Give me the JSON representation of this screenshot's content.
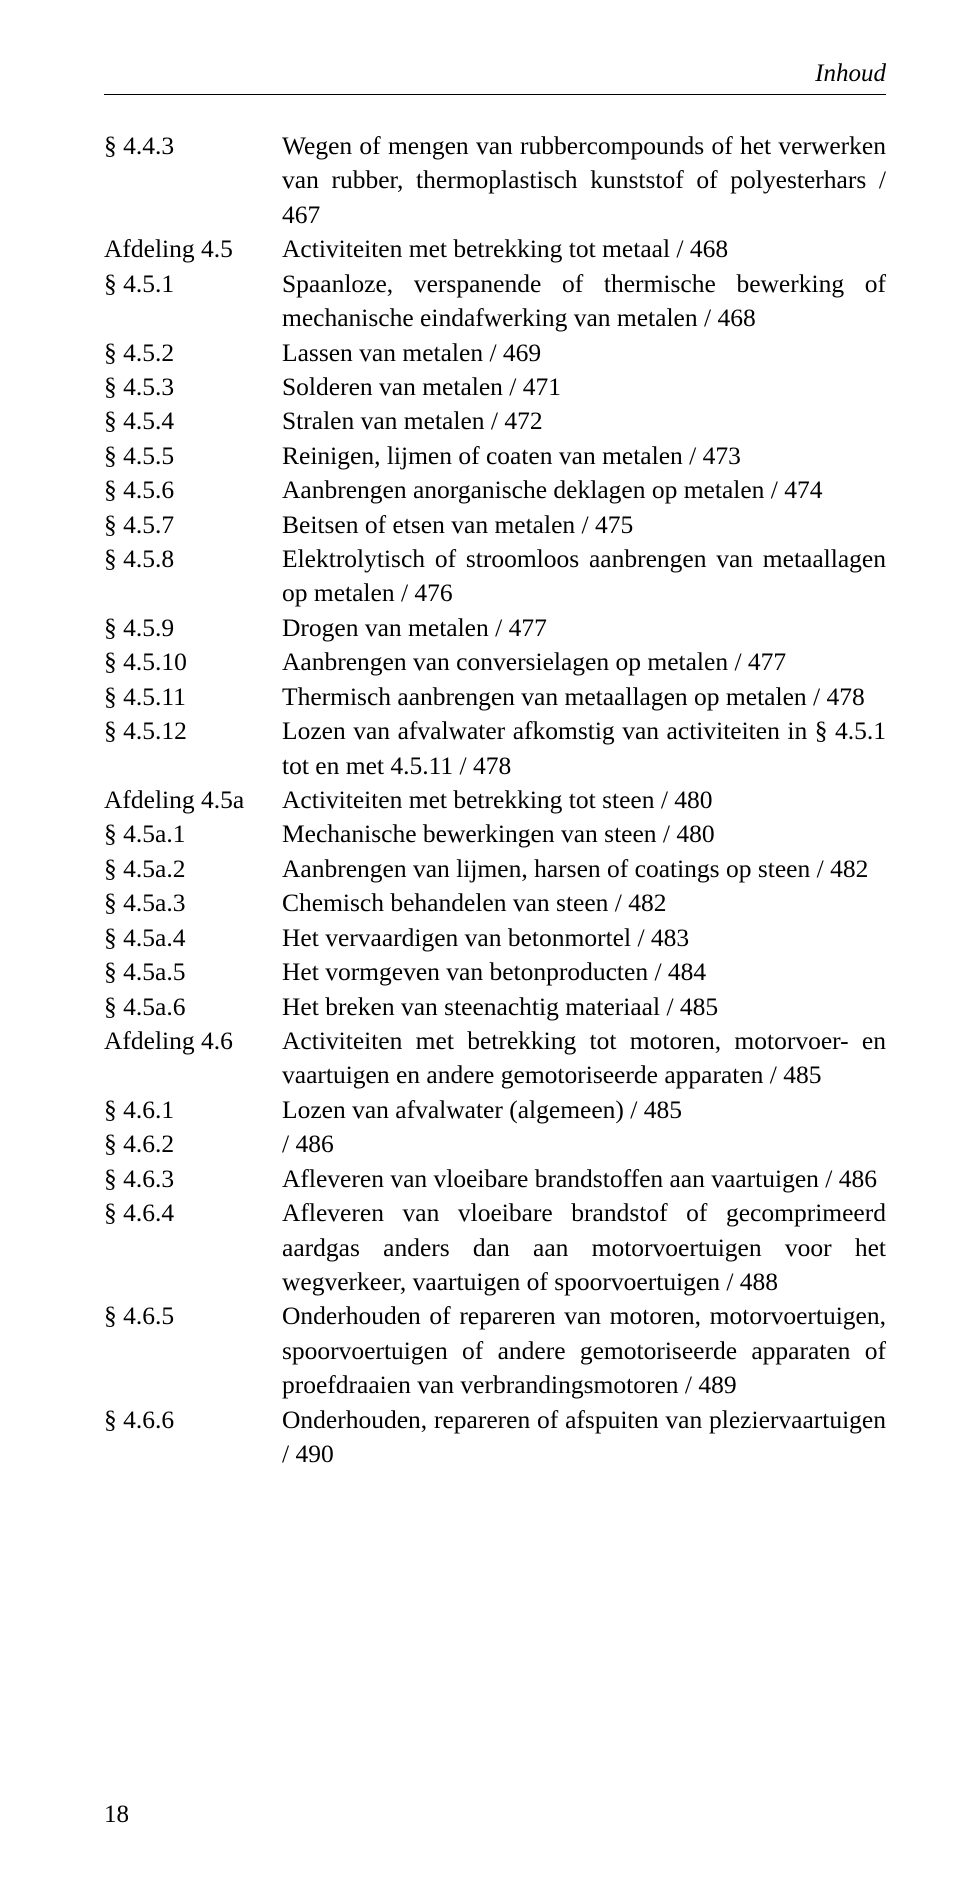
{
  "header": {
    "running": "Inhoud"
  },
  "page_number": "18",
  "toc": [
    {
      "ref": "§ 4.4.3",
      "desc": "Wegen of mengen van rubbercompounds of het ver­werken van rubber, thermoplastisch kunststof of poly­esterhars / 467"
    },
    {
      "ref": "Afdeling 4.5",
      "desc": "Activiteiten met betrekking tot metaal / 468"
    },
    {
      "ref": "§ 4.5.1",
      "desc": "Spaanloze, verspanende of thermische bewerking of mechanische eindafwerking van metalen / 468"
    },
    {
      "ref": "§ 4.5.2",
      "desc": "Lassen van metalen / 469"
    },
    {
      "ref": "§ 4.5.3",
      "desc": "Solderen van metalen / 471"
    },
    {
      "ref": "§ 4.5.4",
      "desc": "Stralen van metalen / 472"
    },
    {
      "ref": "§ 4.5.5",
      "desc": "Reinigen, lijmen of coaten van metalen / 473"
    },
    {
      "ref": "§ 4.5.6",
      "desc": "Aanbrengen anorganische deklagen op metalen / 474"
    },
    {
      "ref": "§ 4.5.7",
      "desc": "Beitsen of etsen van metalen / 475"
    },
    {
      "ref": "§ 4.5.8",
      "desc": "Elektrolytisch of stroomloos aanbrengen van metaal­lagen op metalen / 476"
    },
    {
      "ref": "§ 4.5.9",
      "desc": "Drogen van metalen / 477"
    },
    {
      "ref": "§ 4.5.10",
      "desc": "Aanbrengen van conversielagen op metalen / 477"
    },
    {
      "ref": "§ 4.5.11",
      "desc": "Thermisch aanbrengen van metaallagen op metalen / 478"
    },
    {
      "ref": "§ 4.5.12",
      "desc": "Lozen van afvalwater afkomstig van activiteiten in § 4.5.1 tot en met 4.5.11 / 478"
    },
    {
      "ref": "Afdeling 4.5a",
      "desc": "Activiteiten met betrekking tot steen / 480"
    },
    {
      "ref": "§ 4.5a.1",
      "desc": "Mechanische bewerkingen van steen / 480"
    },
    {
      "ref": "§ 4.5a.2",
      "desc": "Aanbrengen van lijmen, harsen of coatings op steen / 482"
    },
    {
      "ref": "§ 4.5a.3",
      "desc": "Chemisch behandelen van steen / 482"
    },
    {
      "ref": "§ 4.5a.4",
      "desc": "Het vervaardigen van betonmortel / 483"
    },
    {
      "ref": "§ 4.5a.5",
      "desc": "Het vormgeven van betonproducten / 484"
    },
    {
      "ref": "§ 4.5a.6",
      "desc": "Het breken van steenachtig materiaal / 485"
    },
    {
      "ref": "Afdeling 4.6",
      "desc": "Activiteiten met betrekking tot motoren, motorvoer- en vaartuigen en andere gemotoriseerde apparaten / 485"
    },
    {
      "ref": "§ 4.6.1",
      "desc": "Lozen van afvalwater (algemeen) / 485"
    },
    {
      "ref": "§ 4.6.2",
      "desc": " / 486"
    },
    {
      "ref": "§ 4.6.3",
      "desc": "Afleveren van vloeibare brandstoffen aan vaartuigen / 486"
    },
    {
      "ref": "§ 4.6.4",
      "desc": "Afleveren van vloeibare brandstof of gecomprimeerd aardgas anders dan aan motorvoertuigen voor het wegverkeer, vaartuigen of spoorvoertuigen / 488"
    },
    {
      "ref": "§ 4.6.5",
      "desc": "Onderhouden of repareren van motoren, motorvoer­tuigen, spoorvoertuigen of andere gemotoriseerde ap­paraten of proefdraaien van verbrandingsmotoren / 489"
    },
    {
      "ref": "§ 4.6.6",
      "desc": "Onderhouden, repareren of afspuiten van pleziervaar­tuigen / 490"
    }
  ]
}
